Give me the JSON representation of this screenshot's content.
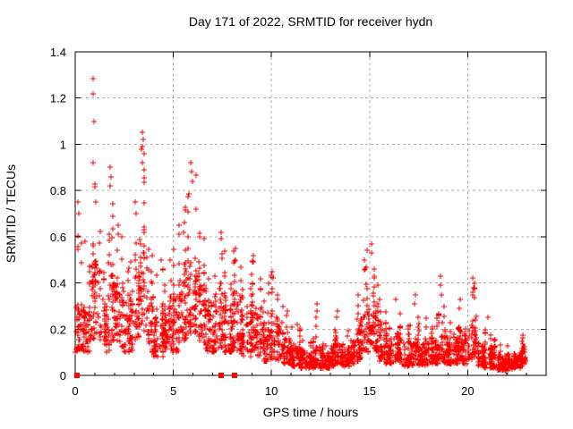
{
  "chart_data": {
    "type": "scatter",
    "title": "Day 171 of 2022, SRMTID for receiver hydn",
    "xlabel": "GPS time / hours",
    "ylabel": "SRMTID / TECUs",
    "xlim": [
      0,
      24
    ],
    "ylim": [
      0,
      1.4
    ],
    "xtick_values": [
      0,
      5,
      10,
      15,
      20
    ],
    "xtick_labels": [
      "0",
      "5",
      "10",
      "15",
      "20"
    ],
    "x_minor_step": 1,
    "ytick_values": [
      0,
      0.2,
      0.4,
      0.6,
      0.8,
      1,
      1.2,
      1.4
    ],
    "ytick_labels": [
      "0",
      "0.2",
      "0.4",
      "0.6",
      "0.8",
      "1",
      "1.2",
      "1.4"
    ],
    "grid": "dashed-at-major-ticks",
    "legend_position": "none",
    "marker_shape": "plus",
    "zero_marker_shape": "filled-square",
    "colors": {
      "marker": "#ff0000",
      "axis": "#000000",
      "grid": "#b3b3b3",
      "text": "#000000",
      "background": "#ffffff"
    },
    "zero_points_x": [
      0.07,
      7.42,
      8.12
    ],
    "representation_note": "dense ~30s-cadence scatter approximated by 15-min envelope bins [hour_start, band_lo, band_hi, peak_max] in TECUs plus explicit outlier points",
    "bin_width_hours": 0.25,
    "points_per_bin": 30,
    "random_seed": 20220171,
    "envelope_bins": [
      [
        0.0,
        0.1,
        0.3,
        0.62
      ],
      [
        0.25,
        0.1,
        0.3,
        0.75
      ],
      [
        0.5,
        0.1,
        0.28,
        0.58
      ],
      [
        0.75,
        0.15,
        0.48,
        0.85
      ],
      [
        1.0,
        0.18,
        0.5,
        0.85
      ],
      [
        1.25,
        0.15,
        0.45,
        0.8
      ],
      [
        1.5,
        0.1,
        0.35,
        0.65
      ],
      [
        1.75,
        0.15,
        0.48,
        0.9
      ],
      [
        2.0,
        0.15,
        0.42,
        0.8
      ],
      [
        2.25,
        0.12,
        0.38,
        0.65
      ],
      [
        2.5,
        0.1,
        0.33,
        0.55
      ],
      [
        2.75,
        0.1,
        0.38,
        0.6
      ],
      [
        3.0,
        0.15,
        0.45,
        0.75
      ],
      [
        3.25,
        0.2,
        0.6,
        1.0
      ],
      [
        3.5,
        0.18,
        0.55,
        0.95
      ],
      [
        3.75,
        0.1,
        0.38,
        0.55
      ],
      [
        4.0,
        0.08,
        0.28,
        0.45
      ],
      [
        4.25,
        0.08,
        0.3,
        0.52
      ],
      [
        4.5,
        0.1,
        0.28,
        0.45
      ],
      [
        4.75,
        0.1,
        0.32,
        0.52
      ],
      [
        5.0,
        0.1,
        0.35,
        0.62
      ],
      [
        5.25,
        0.14,
        0.4,
        0.66
      ],
      [
        5.5,
        0.15,
        0.48,
        0.8
      ],
      [
        5.75,
        0.18,
        0.52,
        0.92
      ],
      [
        6.0,
        0.18,
        0.52,
        0.9
      ],
      [
        6.25,
        0.15,
        0.42,
        0.62
      ],
      [
        6.5,
        0.1,
        0.38,
        0.6
      ],
      [
        6.75,
        0.1,
        0.32,
        0.45
      ],
      [
        7.0,
        0.1,
        0.32,
        0.45
      ],
      [
        7.25,
        0.12,
        0.4,
        0.62
      ],
      [
        7.5,
        0.1,
        0.35,
        0.55
      ],
      [
        7.75,
        0.1,
        0.3,
        0.45
      ],
      [
        8.0,
        0.12,
        0.4,
        0.55
      ],
      [
        8.25,
        0.1,
        0.32,
        0.5
      ],
      [
        8.5,
        0.08,
        0.26,
        0.38
      ],
      [
        8.75,
        0.08,
        0.3,
        0.45
      ],
      [
        9.0,
        0.1,
        0.32,
        0.52
      ],
      [
        9.25,
        0.08,
        0.28,
        0.45
      ],
      [
        9.5,
        0.06,
        0.22,
        0.35
      ],
      [
        9.75,
        0.06,
        0.22,
        0.4
      ],
      [
        10.0,
        0.07,
        0.26,
        0.45
      ],
      [
        10.25,
        0.06,
        0.22,
        0.36
      ],
      [
        10.5,
        0.05,
        0.18,
        0.3
      ],
      [
        10.75,
        0.05,
        0.16,
        0.28
      ],
      [
        11.0,
        0.04,
        0.14,
        0.22
      ],
      [
        11.25,
        0.04,
        0.13,
        0.22
      ],
      [
        11.5,
        0.03,
        0.11,
        0.18
      ],
      [
        11.75,
        0.03,
        0.1,
        0.16
      ],
      [
        12.0,
        0.03,
        0.1,
        0.2
      ],
      [
        12.25,
        0.04,
        0.13,
        0.24
      ],
      [
        12.5,
        0.03,
        0.1,
        0.18
      ],
      [
        12.75,
        0.03,
        0.1,
        0.16
      ],
      [
        13.0,
        0.04,
        0.13,
        0.25
      ],
      [
        13.25,
        0.05,
        0.16,
        0.28
      ],
      [
        13.5,
        0.04,
        0.13,
        0.22
      ],
      [
        13.75,
        0.04,
        0.12,
        0.2
      ],
      [
        14.0,
        0.05,
        0.15,
        0.25
      ],
      [
        14.25,
        0.06,
        0.2,
        0.35
      ],
      [
        14.5,
        0.07,
        0.26,
        0.5
      ],
      [
        14.75,
        0.1,
        0.32,
        0.55
      ],
      [
        15.0,
        0.12,
        0.38,
        0.57
      ],
      [
        15.25,
        0.08,
        0.28,
        0.45
      ],
      [
        15.5,
        0.06,
        0.22,
        0.35
      ],
      [
        15.75,
        0.05,
        0.18,
        0.28
      ],
      [
        16.0,
        0.05,
        0.16,
        0.25
      ],
      [
        16.25,
        0.05,
        0.18,
        0.3
      ],
      [
        16.5,
        0.05,
        0.16,
        0.28
      ],
      [
        16.75,
        0.04,
        0.14,
        0.22
      ],
      [
        17.0,
        0.04,
        0.14,
        0.24
      ],
      [
        17.25,
        0.05,
        0.16,
        0.32
      ],
      [
        17.5,
        0.04,
        0.14,
        0.25
      ],
      [
        17.75,
        0.04,
        0.14,
        0.25
      ],
      [
        18.0,
        0.05,
        0.16,
        0.28
      ],
      [
        18.25,
        0.05,
        0.16,
        0.28
      ],
      [
        18.5,
        0.07,
        0.24,
        0.4
      ],
      [
        18.75,
        0.05,
        0.18,
        0.3
      ],
      [
        19.0,
        0.05,
        0.16,
        0.25
      ],
      [
        19.25,
        0.05,
        0.18,
        0.28
      ],
      [
        19.5,
        0.06,
        0.2,
        0.33
      ],
      [
        19.75,
        0.05,
        0.16,
        0.28
      ],
      [
        20.0,
        0.07,
        0.22,
        0.38
      ],
      [
        20.25,
        0.08,
        0.26,
        0.42
      ],
      [
        20.5,
        0.04,
        0.14,
        0.25
      ],
      [
        20.75,
        0.03,
        0.12,
        0.2
      ],
      [
        21.0,
        0.03,
        0.11,
        0.2
      ],
      [
        21.25,
        0.03,
        0.1,
        0.16
      ],
      [
        21.5,
        0.02,
        0.09,
        0.14
      ],
      [
        21.75,
        0.02,
        0.08,
        0.13
      ],
      [
        22.0,
        0.02,
        0.08,
        0.13
      ],
      [
        22.25,
        0.03,
        0.09,
        0.14
      ],
      [
        22.5,
        0.03,
        0.1,
        0.15
      ],
      [
        22.75,
        0.05,
        0.13,
        0.18
      ]
    ],
    "outlier_points": [
      [
        0.91,
        1.285
      ],
      [
        0.92,
        1.22
      ],
      [
        0.95,
        1.1
      ],
      [
        0.93,
        0.92
      ],
      [
        0.15,
        0.75
      ],
      [
        0.18,
        0.7
      ],
      [
        0.5,
        0.58
      ],
      [
        1.78,
        0.9
      ],
      [
        1.82,
        0.86
      ],
      [
        1.76,
        0.82
      ],
      [
        2.2,
        0.65
      ],
      [
        2.18,
        0.61
      ],
      [
        3.05,
        0.75
      ],
      [
        3.1,
        0.7
      ],
      [
        3.42,
        1.05
      ],
      [
        3.46,
        1.02
      ],
      [
        3.44,
        0.99
      ],
      [
        3.5,
        0.96
      ],
      [
        3.4,
        0.92
      ],
      [
        4.4,
        0.5
      ],
      [
        4.85,
        0.5
      ],
      [
        5.55,
        0.66
      ],
      [
        5.52,
        0.62
      ],
      [
        5.9,
        0.92
      ],
      [
        5.94,
        0.88
      ],
      [
        5.98,
        0.84
      ],
      [
        6.32,
        0.6
      ],
      [
        7.42,
        0.62
      ],
      [
        7.44,
        0.59
      ],
      [
        8.15,
        0.55
      ],
      [
        8.18,
        0.5
      ],
      [
        9.08,
        0.52
      ],
      [
        9.1,
        0.49
      ],
      [
        10.05,
        0.45
      ],
      [
        10.08,
        0.42
      ],
      [
        11.3,
        0.22
      ],
      [
        12.3,
        0.31
      ],
      [
        12.32,
        0.28
      ],
      [
        12.28,
        0.25
      ],
      [
        13.35,
        0.28
      ],
      [
        14.4,
        0.35
      ],
      [
        14.75,
        0.5
      ],
      [
        14.78,
        0.46
      ],
      [
        15.1,
        0.57
      ],
      [
        15.12,
        0.53
      ],
      [
        16.35,
        0.33
      ],
      [
        17.32,
        0.35
      ],
      [
        17.3,
        0.31
      ],
      [
        18.62,
        0.43
      ],
      [
        18.6,
        0.39
      ],
      [
        18.64,
        0.35
      ],
      [
        19.62,
        0.33
      ],
      [
        20.28,
        0.42
      ],
      [
        20.3,
        0.38
      ],
      [
        20.26,
        0.36
      ],
      [
        21.05,
        0.25
      ]
    ]
  }
}
